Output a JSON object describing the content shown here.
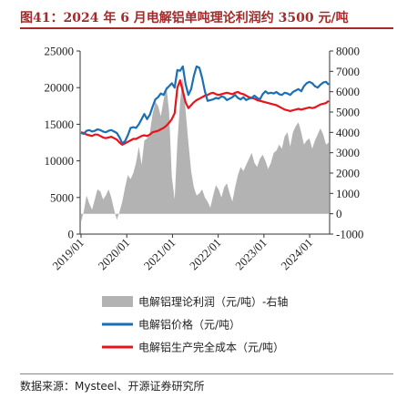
{
  "header": {
    "title": "图41：2024 年 6 月电解铝单吨理论利润约 3500 元/吨"
  },
  "footer": {
    "source": "数据来源：Mysteel、开源证券研究所"
  },
  "colors": {
    "price": "#1a6fb5",
    "cost": "#e8141c",
    "profit": "#b3b3b3",
    "title": "#a52a2a"
  },
  "chart_data": {
    "type": "line",
    "title": "",
    "x_ticks": [
      "2019/01",
      "2020/01",
      "2021/01",
      "2022/01",
      "2023/01",
      "2024/01"
    ],
    "x_range": [
      "2019/01",
      "2024/06"
    ],
    "y_left": {
      "ticks": [
        "0",
        "5000",
        "10000",
        "15000",
        "20000",
        "25000"
      ],
      "range": [
        0,
        25000
      ]
    },
    "y_right": {
      "ticks": [
        "-1000",
        "0",
        "1000",
        "2000",
        "3000",
        "4000",
        "5000",
        "6000",
        "7000",
        "8000"
      ],
      "range": [
        -1000,
        8000
      ]
    },
    "legend_position": "bottom",
    "grid": false,
    "series": [
      {
        "name": "电解铝理论利润（元/吨）-右轴",
        "type": "area",
        "axis": "right",
        "values": [
          -400,
          100,
          900,
          500,
          200,
          700,
          1200,
          1100,
          700,
          900,
          1200,
          800,
          200,
          -300,
          100,
          600,
          1300,
          1900,
          1700,
          2000,
          2500,
          3300,
          2400,
          3600,
          3700,
          4000,
          4900,
          5500,
          5300,
          4800,
          5600,
          6300,
          5000,
          1800,
          700,
          3500,
          5500,
          6700,
          5100,
          3500,
          2100,
          1300,
          900,
          1000,
          1200,
          800,
          600,
          300,
          900,
          1400,
          1200,
          800,
          1300,
          1500,
          1000,
          600,
          1300,
          1900,
          2300,
          2100,
          2400,
          2700,
          3000,
          2500,
          2300,
          2700,
          2900,
          2600,
          2200,
          2500,
          3000,
          3100,
          3400,
          3200,
          3800,
          4000,
          3300,
          4000,
          4300,
          4500,
          4000,
          3400,
          3600,
          3700,
          3200,
          3600,
          3900,
          4200,
          3900,
          3400,
          3500
        ]
      },
      {
        "name": "电解铝价格（元/吨）",
        "type": "line",
        "axis": "left",
        "values": [
          13800,
          13700,
          14100,
          14200,
          14000,
          14100,
          14300,
          14200,
          14000,
          13900,
          14100,
          14200,
          14000,
          13800,
          13200,
          12400,
          12700,
          13500,
          14500,
          14600,
          14500,
          15000,
          15700,
          16400,
          15700,
          16300,
          17400,
          18400,
          18700,
          19200,
          19000,
          19800,
          20200,
          20600,
          20000,
          22400,
          22300,
          22900,
          20500,
          19000,
          19800,
          21600,
          22900,
          22700,
          21300,
          19500,
          18200,
          18300,
          18400,
          18600,
          18500,
          18800,
          18700,
          18300,
          18500,
          18700,
          19000,
          18600,
          18400,
          18700,
          18300,
          18500,
          18600,
          18900,
          18600,
          18400,
          19100,
          19500,
          19200,
          19300,
          19200,
          19400,
          19100,
          19000,
          19300,
          19200,
          19000,
          19400,
          19600,
          19800,
          19500,
          20200,
          20600,
          20800,
          20600,
          20200,
          20000,
          20400,
          20700,
          20800,
          20400
        ]
      },
      {
        "name": "电解铝生产完全成本（元/吨）",
        "type": "line",
        "axis": "left",
        "values": [
          13900,
          13800,
          13600,
          13500,
          13400,
          13600,
          13600,
          13400,
          13200,
          13100,
          13200,
          13300,
          13100,
          12900,
          12500,
          12200,
          12400,
          12600,
          12800,
          13000,
          13000,
          13200,
          13400,
          13500,
          13400,
          13600,
          13900,
          14000,
          14100,
          14300,
          14500,
          14800,
          15200,
          15700,
          16500,
          20000,
          21000,
          19500,
          18000,
          17200,
          17600,
          18000,
          18300,
          18500,
          18700,
          18900,
          19000,
          19200,
          19300,
          19100,
          19000,
          19100,
          19200,
          19300,
          19200,
          19100,
          19300,
          19400,
          19200,
          19100,
          18900,
          18700,
          18600,
          18500,
          18300,
          18200,
          18100,
          18000,
          17900,
          17800,
          17700,
          17600,
          17400,
          17200,
          17000,
          16900,
          16800,
          16900,
          17000,
          17100,
          17000,
          17100,
          17200,
          17300,
          17200,
          17300,
          17500,
          17700,
          17800,
          17900,
          18200
        ]
      }
    ]
  }
}
